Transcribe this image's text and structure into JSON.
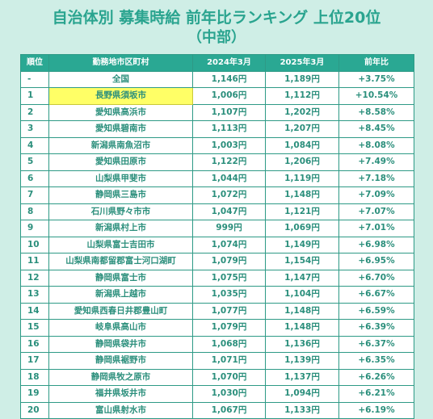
{
  "title_line1": "自治体別 募集時給 前年比ランキング 上位20位",
  "title_line2": "（中部）",
  "headers": {
    "rank": "順位",
    "municipality": "勤務地市区町村",
    "y2024": "2024年3月",
    "y2025": "2025年3月",
    "yoy": "前年比"
  },
  "highlight_color": "#ffff66",
  "rows": [
    {
      "rank": "-",
      "municipality": "全国",
      "y2024": "1,146円",
      "y2025": "1,189円",
      "yoy": "+3.75%"
    },
    {
      "rank": "1",
      "municipality": "長野県須坂市",
      "y2024": "1,006円",
      "y2025": "1,112円",
      "yoy": "+10.54%",
      "highlight": true
    },
    {
      "rank": "2",
      "municipality": "愛知県高浜市",
      "y2024": "1,107円",
      "y2025": "1,202円",
      "yoy": "+8.58%"
    },
    {
      "rank": "3",
      "municipality": "愛知県碧南市",
      "y2024": "1,113円",
      "y2025": "1,207円",
      "yoy": "+8.45%"
    },
    {
      "rank": "4",
      "municipality": "新潟県南魚沼市",
      "y2024": "1,003円",
      "y2025": "1,084円",
      "yoy": "+8.08%"
    },
    {
      "rank": "5",
      "municipality": "愛知県田原市",
      "y2024": "1,122円",
      "y2025": "1,206円",
      "yoy": "+7.49%"
    },
    {
      "rank": "6",
      "municipality": "山梨県甲斐市",
      "y2024": "1,044円",
      "y2025": "1,119円",
      "yoy": "+7.18%"
    },
    {
      "rank": "7",
      "municipality": "静岡県三島市",
      "y2024": "1,072円",
      "y2025": "1,148円",
      "yoy": "+7.09%"
    },
    {
      "rank": "8",
      "municipality": "石川県野々市市",
      "y2024": "1,047円",
      "y2025": "1,121円",
      "yoy": "+7.07%"
    },
    {
      "rank": "9",
      "municipality": "新潟県村上市",
      "y2024": "999円",
      "y2025": "1,069円",
      "yoy": "+7.01%"
    },
    {
      "rank": "10",
      "municipality": "山梨県富士吉田市",
      "y2024": "1,074円",
      "y2025": "1,149円",
      "yoy": "+6.98%"
    },
    {
      "rank": "11",
      "municipality": "山梨県南都留郡富士河口湖町",
      "y2024": "1,079円",
      "y2025": "1,154円",
      "yoy": "+6.95%"
    },
    {
      "rank": "12",
      "municipality": "静岡県富士市",
      "y2024": "1,075円",
      "y2025": "1,147円",
      "yoy": "+6.70%"
    },
    {
      "rank": "13",
      "municipality": "新潟県上越市",
      "y2024": "1,035円",
      "y2025": "1,104円",
      "yoy": "+6.67%"
    },
    {
      "rank": "14",
      "municipality": "愛知県西春日井郡豊山町",
      "y2024": "1,077円",
      "y2025": "1,148円",
      "yoy": "+6.59%"
    },
    {
      "rank": "15",
      "municipality": "岐阜県高山市",
      "y2024": "1,079円",
      "y2025": "1,148円",
      "yoy": "+6.39%"
    },
    {
      "rank": "16",
      "municipality": "静岡県袋井市",
      "y2024": "1,068円",
      "y2025": "1,136円",
      "yoy": "+6.37%"
    },
    {
      "rank": "17",
      "municipality": "静岡県裾野市",
      "y2024": "1,071円",
      "y2025": "1,139円",
      "yoy": "+6.35%"
    },
    {
      "rank": "18",
      "municipality": "静岡県牧之原市",
      "y2024": "1,070円",
      "y2025": "1,137円",
      "yoy": "+6.26%"
    },
    {
      "rank": "19",
      "municipality": "福井県坂井市",
      "y2024": "1,030円",
      "y2025": "1,094円",
      "yoy": "+6.21%"
    },
    {
      "rank": "20",
      "municipality": "富山県射水市",
      "y2024": "1,067円",
      "y2025": "1,133円",
      "yoy": "+6.19%"
    }
  ]
}
